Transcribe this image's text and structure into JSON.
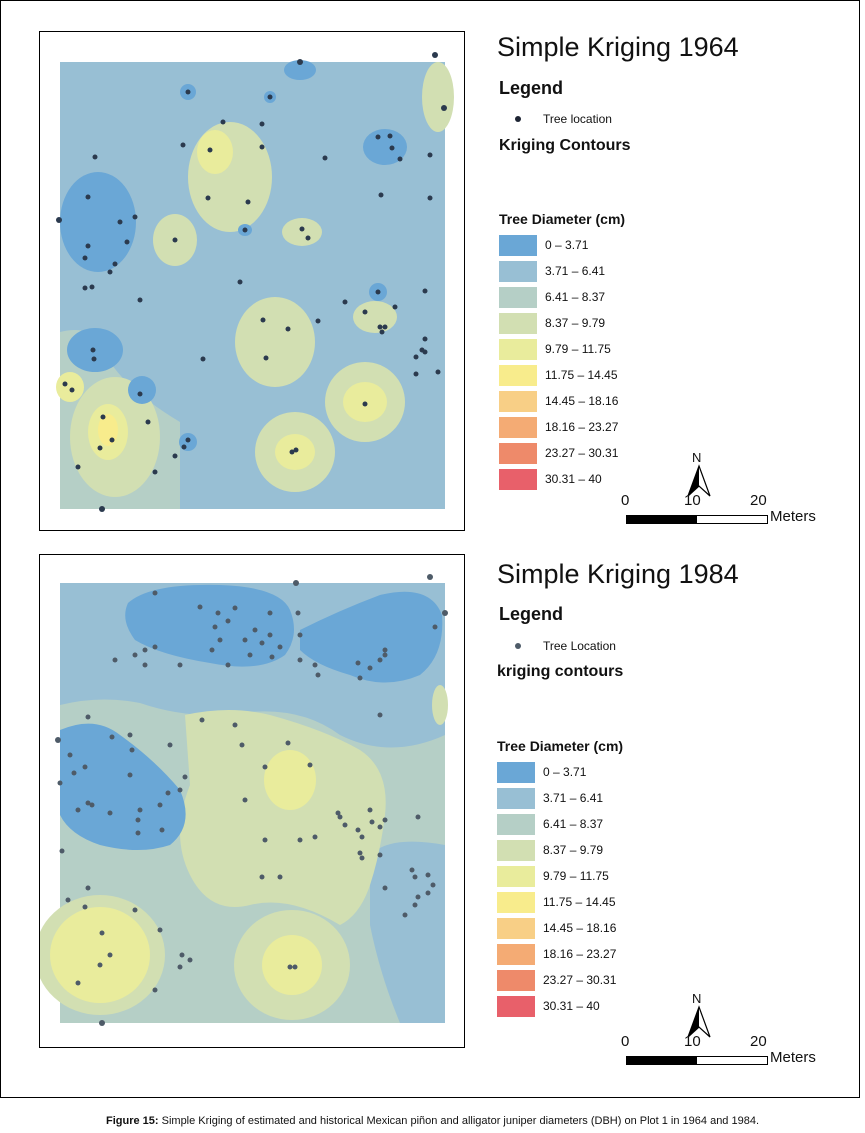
{
  "maps": [
    {
      "title": "Simple Kriging 1964",
      "legend_heading": "Legend",
      "tree_label": "Tree location",
      "contours_label": "Kriging Contours",
      "diameter_title": "Tree Diameter (cm)"
    },
    {
      "title": "Simple Kriging 1984",
      "legend_heading": "Legend",
      "tree_label": "Tree Location",
      "contours_label": "kriging contours",
      "diameter_title": "Tree Diameter (cm)"
    }
  ],
  "diameter_classes": [
    {
      "label": "0 – 3.71",
      "color": "#6aa7d6"
    },
    {
      "label": "3.71 – 6.41",
      "color": "#98bfd4"
    },
    {
      "label": "6.41 – 8.37",
      "color": "#b5cfc6"
    },
    {
      "label": "8.37 – 9.79",
      "color": "#d2dfb2"
    },
    {
      "label": "9.79 – 11.75",
      "color": "#e9ec9c"
    },
    {
      "label": "11.75 – 14.45",
      "color": "#f8ec8c"
    },
    {
      "label": "14.45 – 18.16",
      "color": "#f8cf86"
    },
    {
      "label": "18.16 – 23.27",
      "color": "#f4ab74"
    },
    {
      "label": "23.27 – 30.31",
      "color": "#ee8a6a"
    },
    {
      "label": "30.31 – 40",
      "color": "#e8606a"
    }
  ],
  "scale_bar": {
    "north": "N",
    "ticks": [
      "0",
      "10",
      "20"
    ],
    "unit": "Meters"
  },
  "caption": {
    "label": "Figure 15:",
    "text": " Simple Kriging of estimated and historical Mexican piñon and alligator juniper diameters (DBH) on Plot 1 in 1964 and 1984."
  },
  "icons": {
    "tree_marker": "dot-icon",
    "north": "north-arrow-icon"
  }
}
